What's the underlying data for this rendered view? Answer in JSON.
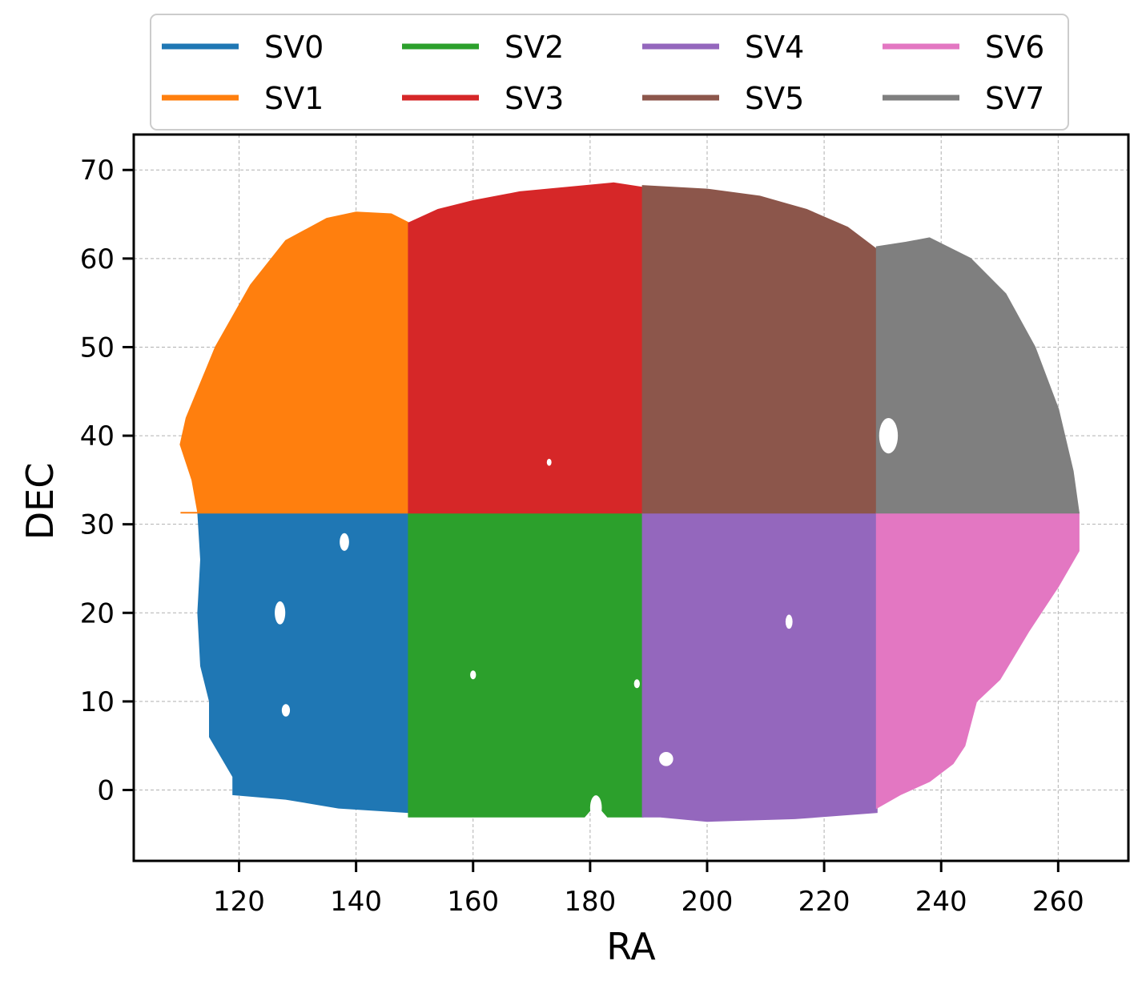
{
  "chart_data": {
    "type": "scatter",
    "title": "",
    "xlabel": "RA",
    "ylabel": "DEC",
    "xlim": [
      102,
      272
    ],
    "ylim": [
      -8,
      74
    ],
    "xticks": [
      120,
      140,
      160,
      180,
      200,
      220,
      240,
      260
    ],
    "yticks": [
      0,
      10,
      20,
      30,
      40,
      50,
      60,
      70
    ],
    "grid": true,
    "legend_position": "top-center, above plot, 4 columns",
    "series": [
      {
        "name": "SV0",
        "color": "#1f77b4",
        "ra_range": [
          113,
          149
        ],
        "dec_range": [
          -3,
          31.3
        ]
      },
      {
        "name": "SV1",
        "color": "#ff7f0e",
        "ra_range": [
          110,
          149
        ],
        "dec_range": [
          31.3,
          65
        ]
      },
      {
        "name": "SV2",
        "color": "#2ca02c",
        "ra_range": [
          149,
          189
        ],
        "dec_range": [
          -3,
          31.3
        ]
      },
      {
        "name": "SV3",
        "color": "#d62728",
        "ra_range": [
          149,
          189
        ],
        "dec_range": [
          31.3,
          68.5
        ]
      },
      {
        "name": "SV4",
        "color": "#9467bd",
        "ra_range": [
          189,
          229
        ],
        "dec_range": [
          -3.5,
          31.3
        ]
      },
      {
        "name": "SV5",
        "color": "#8c564b",
        "ra_range": [
          189,
          229
        ],
        "dec_range": [
          31.3,
          68
        ]
      },
      {
        "name": "SV6",
        "color": "#e377c2",
        "ra_range": [
          229,
          263.5
        ],
        "dec_range": [
          -2,
          31.3
        ]
      },
      {
        "name": "SV7",
        "color": "#7f7f7f",
        "ra_range": [
          229,
          263.5
        ],
        "dec_range": [
          31.3,
          62.5
        ]
      }
    ]
  }
}
